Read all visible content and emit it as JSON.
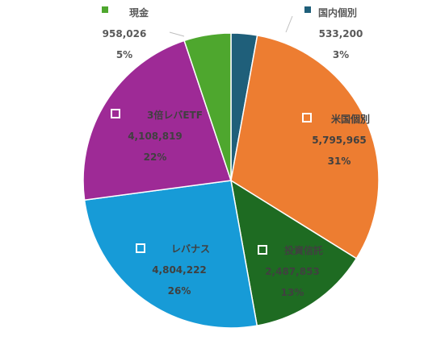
{
  "chart_data": {
    "type": "pie",
    "title": "",
    "legend": "none",
    "slices": [
      {
        "label": "国内個別",
        "value": 533200,
        "value_label": "533,200",
        "percent": "3%",
        "color": "#1F5F7A"
      },
      {
        "label": "米国個別",
        "value": 5795965,
        "value_label": "5,795,965",
        "percent": "31%",
        "color": "#ED7D31"
      },
      {
        "label": "投資信託",
        "value": 2487853,
        "value_label": "2,487,853",
        "percent": "13%",
        "color": "#1E6B22"
      },
      {
        "label": "レバナス",
        "value": 4804222,
        "value_label": "4,804,222",
        "percent": "26%",
        "color": "#179BD7"
      },
      {
        "label": "3倍レバETF",
        "value": 4108819,
        "value_label": "4,108,819",
        "percent": "22%",
        "color": "#9E2A96"
      },
      {
        "label": "現金",
        "value": 958026,
        "value_label": "958,026",
        "percent": "5%",
        "color": "#4EA72E"
      }
    ]
  }
}
